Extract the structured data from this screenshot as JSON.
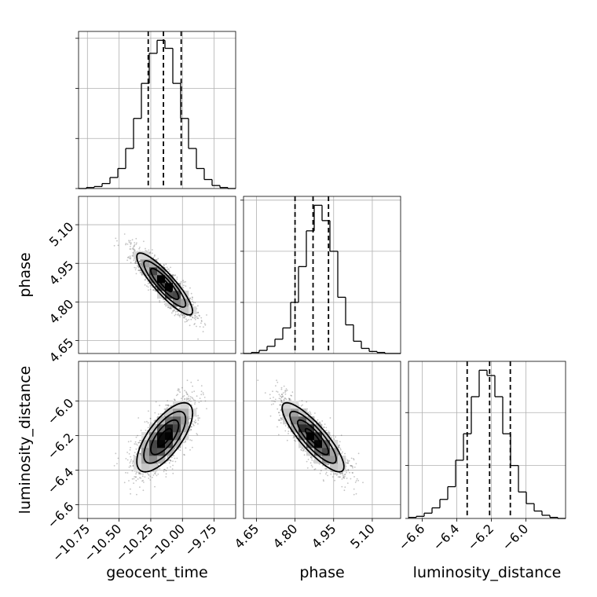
{
  "chart_data": {
    "type": "corner",
    "parameters": [
      "geocent_time",
      "phase",
      "luminosity_distance"
    ],
    "axis_labels": {
      "geocent_time": "geocent_time",
      "phase": "phase",
      "luminosity_distance": "luminosity_distance"
    },
    "ranges": {
      "geocent_time": [
        -10.82,
        -9.58
      ],
      "phase": [
        4.6,
        5.21
      ],
      "luminosity_distance": [
        -6.68,
        -5.77
      ]
    },
    "ticks": {
      "geocent_time": [
        -10.75,
        -10.5,
        -10.25,
        -10.0,
        -9.75
      ],
      "phase": [
        4.65,
        4.8,
        4.95,
        5.1
      ],
      "luminosity_distance": [
        -6.6,
        -6.4,
        -6.2,
        -6.0
      ]
    },
    "tick_labels": {
      "geocent_time": [
        "−10.75",
        "−10.50",
        "−10.25",
        "−10.00",
        "−9.75"
      ],
      "phase": [
        "4.65",
        "4.80",
        "4.95",
        "5.10"
      ],
      "luminosity_distance": [
        "−6.6",
        "−6.4",
        "−6.2",
        "−6.0"
      ]
    },
    "quantiles": {
      "geocent_time": [
        -10.27,
        -10.15,
        -10.01
      ],
      "phase": [
        4.8,
        4.87,
        4.93
      ],
      "luminosity_distance": [
        -6.34,
        -6.21,
        -6.09
      ]
    },
    "histograms": {
      "geocent_time": {
        "bin_edges": [
          -10.82,
          -10.758,
          -10.696,
          -10.634,
          -10.572,
          -10.51,
          -10.448,
          -10.386,
          -10.324,
          -10.262,
          -10.2,
          -10.138,
          -10.076,
          -10.014,
          -9.952,
          -9.89,
          -9.828,
          -9.766,
          -9.704,
          -9.642,
          -9.58
        ],
        "counts": [
          0,
          1,
          2,
          5,
          11,
          20,
          40,
          70,
          105,
          135,
          148,
          140,
          105,
          70,
          40,
          20,
          9,
          3,
          1,
          0
        ]
      },
      "phase": {
        "bin_edges": [
          4.6,
          4.6305,
          4.661,
          4.6915,
          4.722,
          4.7525,
          4.783,
          4.8135,
          4.844,
          4.8745,
          4.905,
          4.9355,
          4.966,
          4.9965,
          5.027,
          5.0575,
          5.088,
          5.1185,
          5.149,
          5.1795,
          5.21
        ],
        "counts": [
          0,
          1,
          3,
          7,
          14,
          25,
          50,
          85,
          120,
          145,
          130,
          100,
          55,
          28,
          12,
          5,
          2,
          1,
          0,
          0
        ]
      },
      "luminosity_distance": {
        "bin_edges": [
          -6.68,
          -6.6345,
          -6.589,
          -6.5435,
          -6.498,
          -6.4525,
          -6.407,
          -6.3615,
          -6.316,
          -6.2705,
          -6.225,
          -6.1795,
          -6.134,
          -6.0885,
          -6.043,
          -5.9975,
          -5.952,
          -5.9065,
          -5.861,
          -5.8155,
          -5.77
        ],
        "counts": [
          1,
          2,
          5,
          10,
          18,
          30,
          55,
          80,
          115,
          140,
          135,
          115,
          80,
          50,
          25,
          14,
          7,
          3,
          1,
          0
        ]
      }
    },
    "distribution": {
      "mean": {
        "geocent_time": -10.14,
        "phase": 4.87,
        "luminosity_distance": -6.21
      },
      "sd": {
        "geocent_time": 0.11,
        "phase": 0.06,
        "luminosity_distance": 0.1
      },
      "correlation": {
        "geocent_time__phase": -0.88,
        "geocent_time__luminosity_distance": 0.7,
        "phase__luminosity_distance": -0.85
      }
    },
    "contour_levels_sigma": [
      0.5,
      1.0,
      1.5,
      2.0
    ],
    "grid": true,
    "legend": "none"
  },
  "colors": {
    "line": "#000000",
    "grid": "#b0b0b0",
    "points": "#555555",
    "background": "#ffffff"
  }
}
